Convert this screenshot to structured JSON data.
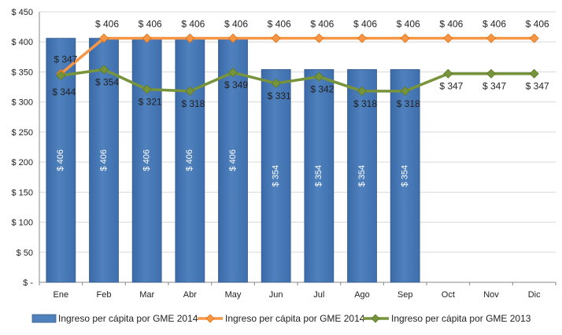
{
  "chart_data": {
    "type": "bar+line",
    "categories": [
      "Ene",
      "Feb",
      "Mar",
      "Abr",
      "May",
      "Jun",
      "Jul",
      "Ago",
      "Sep",
      "Oct",
      "Nov",
      "Dic"
    ],
    "ylim": [
      0,
      450
    ],
    "y_ticks": [
      0,
      50,
      100,
      150,
      200,
      250,
      300,
      350,
      400,
      450
    ],
    "y_tick_labels": [
      "$ -",
      "$ 50",
      "$ 100",
      "$ 150",
      "$ 200",
      "$ 250",
      "$ 300",
      "$ 350",
      "$ 400",
      "$ 450"
    ],
    "grid": true,
    "legend_position": "bottom",
    "series": [
      {
        "name": "Ingreso per cápita por GME 2014",
        "kind": "bar",
        "color": "#4F81BD",
        "values": [
          406,
          406,
          406,
          406,
          406,
          354,
          354,
          354,
          354,
          null,
          null,
          null
        ],
        "labels": [
          "$ 406",
          "$ 406",
          "$ 406",
          "$ 406",
          "$ 406",
          "$ 354",
          "$ 354",
          "$ 354",
          "$ 354",
          "",
          "",
          ""
        ]
      },
      {
        "name": "Ingreso per cápita por GME 2014",
        "kind": "line",
        "color": "#F79646",
        "values": [
          347,
          406,
          406,
          406,
          406,
          406,
          406,
          406,
          406,
          406,
          406,
          406
        ],
        "labels": [
          "$ 347",
          "$ 406",
          "$ 406",
          "$ 406",
          "$ 406",
          "$ 406",
          "$ 406",
          "$ 406",
          "$ 406",
          "$ 406",
          "$ 406",
          "$ 406"
        ]
      },
      {
        "name": "Ingreso per cápita por GME 2013",
        "kind": "line",
        "color": "#77933C",
        "values": [
          344,
          354,
          321,
          318,
          349,
          331,
          342,
          318,
          318,
          347,
          347,
          347
        ],
        "labels": [
          "$ 344",
          "$ 354",
          "$ 321",
          "$ 318",
          "$ 349",
          "$ 331",
          "$ 342",
          "$ 318",
          "$ 318",
          "$ 347",
          "$ 347",
          "$ 347"
        ]
      }
    ]
  }
}
